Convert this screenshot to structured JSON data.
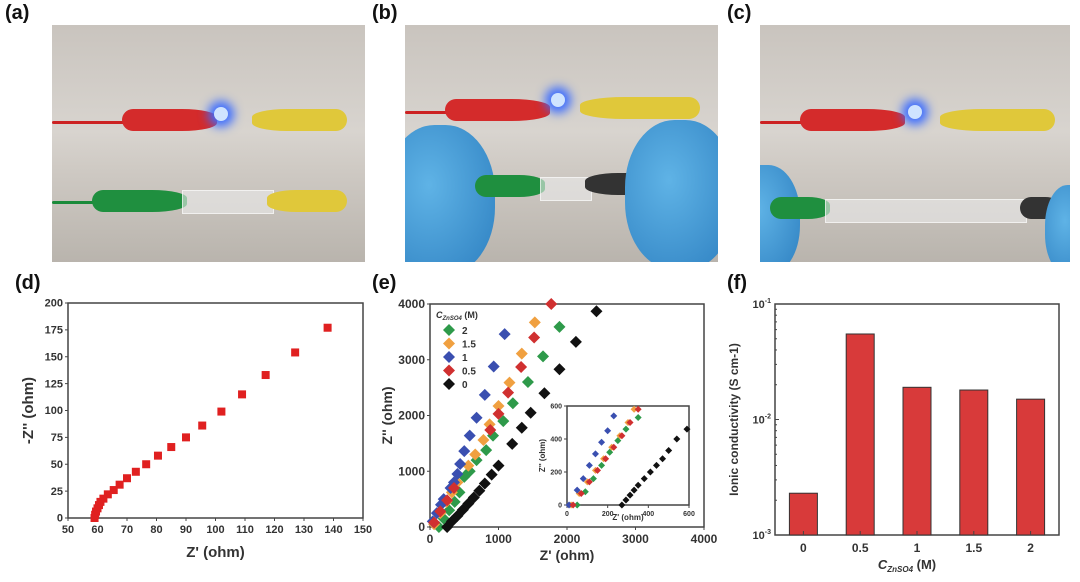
{
  "panels": {
    "a": "(a)",
    "b": "(b)",
    "c": "(c)",
    "d": "(d)",
    "e": "(e)",
    "f": "(f)"
  },
  "colors": {
    "marker_red": "#e02020",
    "bar_red": "#d83a3a",
    "green": "#2e9a4a",
    "orange": "#f0a040",
    "blue": "#3a4fb0",
    "red": "#d03030",
    "black": "#111111"
  },
  "chart_data": [
    {
      "panel": "d",
      "type": "scatter",
      "xlabel": "Z' (ohm)",
      "ylabel": "-Z'' (ohm)",
      "xlim": [
        50,
        150
      ],
      "ylim": [
        0,
        200
      ],
      "xticks": [
        "50",
        "60",
        "70",
        "80",
        "90",
        "100",
        "110",
        "120",
        "130",
        "140",
        "150"
      ],
      "yticks": [
        "0",
        "25",
        "50",
        "75",
        "100",
        "125",
        "150",
        "175",
        "200"
      ],
      "x": [
        59,
        59.2,
        59.5,
        60,
        60.5,
        61,
        62,
        63.5,
        65.5,
        67.5,
        70,
        73,
        76.5,
        80.5,
        85,
        90,
        95.5,
        102,
        109,
        117,
        127,
        138
      ],
      "y": [
        0,
        3,
        6,
        9,
        12,
        15,
        18,
        22,
        26,
        31,
        37,
        43,
        50,
        58,
        66,
        75,
        86,
        99,
        115,
        133,
        154,
        177
      ]
    },
    {
      "panel": "e",
      "type": "scatter",
      "xlabel": "Z' (ohm)",
      "ylabel": "Z'' (ohm)",
      "xlim": [
        0,
        4000
      ],
      "ylim": [
        0,
        4000
      ],
      "xticks": [
        "0",
        "1000",
        "2000",
        "3000",
        "4000"
      ],
      "yticks": [
        "0",
        "1000",
        "2000",
        "3000",
        "4000"
      ],
      "legend_title": "C",
      "legend_title_sub": "ZnSO4",
      "legend_title_unit": " (M)",
      "legend": "top-left",
      "series": [
        {
          "name": "2",
          "color": "#2e9a4a",
          "x": [
            130,
            200,
            280,
            360,
            430,
            500,
            580,
            680,
            820,
            920,
            1070,
            1210,
            1430,
            1650,
            1890
          ],
          "y": [
            0,
            150,
            300,
            450,
            620,
            900,
            1000,
            1200,
            1380,
            1640,
            1900,
            2220,
            2600,
            3060,
            3590
          ]
        },
        {
          "name": "1.5",
          "color": "#f0a040",
          "x": [
            60,
            150,
            240,
            320,
            400,
            560,
            660,
            780,
            870,
            1000,
            1160,
            1340,
            1530
          ],
          "y": [
            50,
            250,
            450,
            620,
            800,
            1100,
            1300,
            1560,
            1840,
            2170,
            2590,
            3110,
            3670
          ]
        },
        {
          "name": "1",
          "color": "#3a4fb0",
          "x": [
            40,
            100,
            160,
            200,
            300,
            350,
            400,
            440,
            500,
            580,
            680,
            800,
            930,
            1090
          ],
          "y": [
            100,
            250,
            400,
            500,
            700,
            800,
            950,
            1130,
            1360,
            1640,
            1960,
            2370,
            2880,
            3460
          ]
        },
        {
          "name": "0.5",
          "color": "#d03030",
          "x": [
            60,
            150,
            250,
            350,
            880,
            1000,
            1140,
            1330,
            1520,
            1770
          ],
          "y": [
            80,
            280,
            480,
            700,
            1740,
            2030,
            2410,
            2870,
            3400,
            4050
          ]
        },
        {
          "name": "0",
          "color": "#111111",
          "x": [
            250,
            320,
            400,
            480,
            560,
            640,
            720,
            800,
            900,
            1000,
            1200,
            1340,
            1470,
            1670,
            1890,
            2130,
            2430
          ],
          "y": [
            0,
            100,
            200,
            310,
            420,
            530,
            650,
            780,
            940,
            1100,
            1490,
            1780,
            2050,
            2400,
            2830,
            3320,
            3870
          ]
        }
      ],
      "inset": {
        "xlabel": "Z' (ohm)",
        "ylabel": "Z'' (ohm)",
        "xlim": [
          0,
          600
        ],
        "ylim": [
          0,
          600
        ],
        "xticks": [
          "0",
          "200",
          "400",
          "600"
        ],
        "yticks": [
          "0",
          "200",
          "400",
          "600"
        ],
        "series": [
          {
            "name": "2",
            "color": "#2e9a4a",
            "x": [
              50,
              90,
              130,
              170,
              210,
              250,
              290,
              350
            ],
            "y": [
              0,
              80,
              160,
              240,
              320,
              390,
              460,
              530
            ]
          },
          {
            "name": "1.5",
            "color": "#f0a040",
            "x": [
              20,
              60,
              100,
              140,
              180,
              220,
              260,
              300,
              330
            ],
            "y": [
              0,
              70,
              140,
              210,
              280,
              350,
              420,
              500,
              580
            ]
          },
          {
            "name": "1",
            "color": "#3a4fb0",
            "x": [
              10,
              50,
              80,
              110,
              140,
              170,
              200,
              230
            ],
            "y": [
              0,
              90,
              160,
              240,
              310,
              380,
              450,
              540
            ]
          },
          {
            "name": "0.5",
            "color": "#d03030",
            "x": [
              30,
              70,
              110,
              150,
              190,
              230,
              270,
              310,
              350
            ],
            "y": [
              0,
              70,
              140,
              210,
              280,
              350,
              420,
              500,
              580
            ]
          },
          {
            "name": "0",
            "color": "#111111",
            "x": [
              270,
              290,
              310,
              330,
              350,
              380,
              410,
              440,
              470,
              500,
              540,
              590
            ],
            "y": [
              0,
              30,
              60,
              90,
              120,
              160,
              200,
              240,
              280,
              330,
              400,
              460
            ]
          }
        ]
      }
    },
    {
      "panel": "f",
      "type": "bar",
      "xlabel": "C",
      "xlabel_sub": "ZnSO4",
      "xlabel_unit": " (M)",
      "ylabel": "Ionic conductivity (S cm-1)",
      "yscale": "log",
      "ylim": [
        0.001,
        0.1
      ],
      "yticks": [
        "10-3",
        "10-2",
        "10-1"
      ],
      "categories": [
        "0",
        "0.5",
        "1",
        "1.5",
        "2"
      ],
      "values": [
        0.0023,
        0.055,
        0.019,
        0.018,
        0.015
      ]
    }
  ]
}
